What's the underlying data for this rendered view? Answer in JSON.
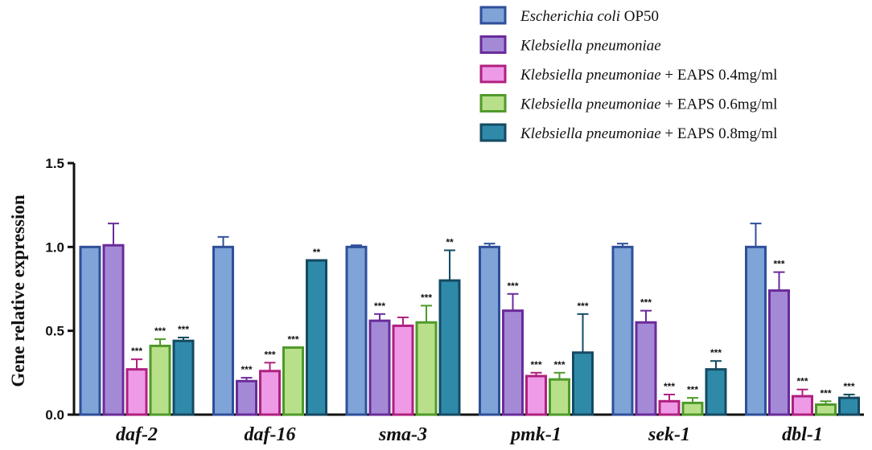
{
  "chart_data": {
    "type": "bar",
    "title": "",
    "xlabel": "",
    "ylabel": "Gene relative expression",
    "ylim": [
      0,
      1.5
    ],
    "yticks": [
      "0.0",
      "0.5",
      "1.0",
      "1.5"
    ],
    "grid": false,
    "legend_position": "top-right",
    "categories": [
      "daf-2",
      "daf-16",
      "sma-3",
      "pmk-1",
      "sek-1",
      "dbl-1"
    ],
    "series": [
      {
        "name": "Escherichia coli OP50",
        "name_italic": "Escherichia coli",
        "name_suffix": " OP50",
        "fill": "#7ea4d8",
        "stroke": "#2f4f9a",
        "values": [
          1.0,
          1.0,
          1.0,
          1.0,
          1.0,
          1.0
        ],
        "errors": [
          0.0,
          0.06,
          0.01,
          0.02,
          0.02,
          0.14
        ],
        "significance": [
          "",
          "",
          "",
          "",
          "",
          ""
        ]
      },
      {
        "name": "Klebsiella pneumoniae",
        "name_italic": "Klebsiella pneumoniae",
        "name_suffix": "",
        "fill": "#a48ad6",
        "stroke": "#6a2b9a",
        "values": [
          1.01,
          0.2,
          0.56,
          0.62,
          0.55,
          0.74
        ],
        "errors": [
          0.13,
          0.02,
          0.04,
          0.1,
          0.07,
          0.11
        ],
        "significance": [
          "",
          "***",
          "***",
          "***",
          "***",
          "***"
        ]
      },
      {
        "name": "Klebsiella pneumoniae + EAPS 0.4mg/ml",
        "name_italic": "Klebsiella pneumoniae",
        "name_suffix": " + EAPS 0.4mg/ml",
        "fill": "#ee9ae6",
        "stroke": "#b0207f",
        "values": [
          0.27,
          0.26,
          0.53,
          0.23,
          0.08,
          0.11
        ],
        "errors": [
          0.06,
          0.05,
          0.05,
          0.02,
          0.04,
          0.04
        ],
        "significance": [
          "***",
          "***",
          "",
          "***",
          "***",
          "***"
        ]
      },
      {
        "name": "Klebsiella pneumoniae + EAPS 0.6mg/ml",
        "name_italic": "Klebsiella pneumoniae",
        "name_suffix": " + EAPS 0.6mg/ml",
        "fill": "#b8e08a",
        "stroke": "#4f9a2a",
        "values": [
          0.41,
          0.4,
          0.55,
          0.21,
          0.07,
          0.06
        ],
        "errors": [
          0.04,
          0.0,
          0.1,
          0.04,
          0.03,
          0.02
        ],
        "significance": [
          "***",
          "***",
          "***",
          "***",
          "***",
          "***"
        ]
      },
      {
        "name": "Klebsiella pneumoniae + EAPS 0.8mg/ml",
        "name_italic": "Klebsiella pneumoniae",
        "name_suffix": " + EAPS 0.8mg/ml",
        "fill": "#2f8aaa",
        "stroke": "#144a62",
        "values": [
          0.44,
          0.92,
          0.8,
          0.37,
          0.27,
          0.1
        ],
        "errors": [
          0.02,
          0.0,
          0.18,
          0.23,
          0.05,
          0.02
        ],
        "significance": [
          "***",
          "**",
          "**",
          "***",
          "***",
          "***"
        ]
      }
    ]
  },
  "colors": {
    "axis": "#111111",
    "background": "#ffffff"
  }
}
